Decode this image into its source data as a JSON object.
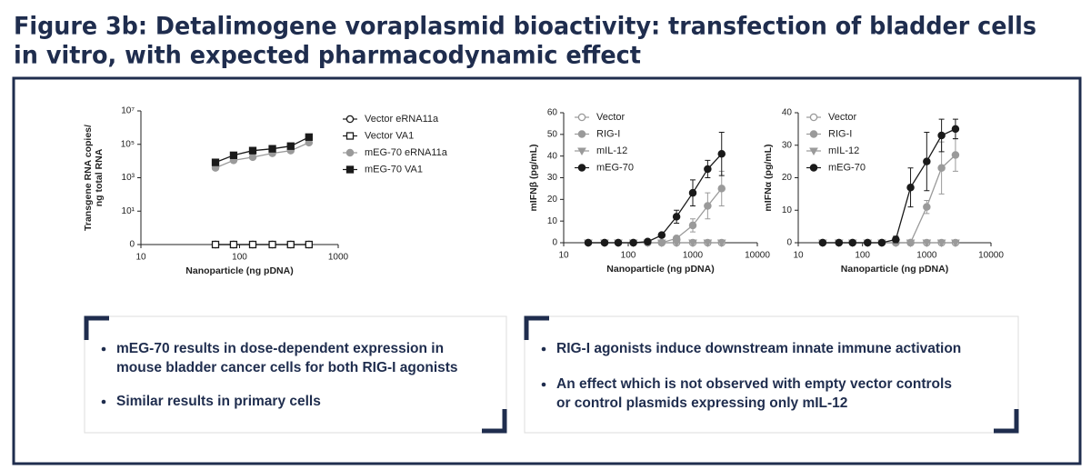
{
  "header": {
    "title_lines": [
      "Figure 3b: Detalimogene voraplasmid bioactivity: transfection of bladder cells",
      "in vitro, with expected pharmacodynamic effect"
    ]
  },
  "chart_data": [
    {
      "type": "line",
      "y_label": [
        "Transgene RNA copies/",
        "ng total RNA"
      ],
      "x_label": "Nanoparticle (ng pDNA)",
      "xlog": true,
      "ylog": true,
      "xlim": [
        10,
        1000
      ],
      "xticks": [
        10,
        100,
        1000
      ],
      "ylim": [
        0,
        10000000
      ],
      "yticks": [
        0,
        {
          "value": 10,
          "label": "10¹"
        },
        {
          "value": 1000,
          "label": "10³"
        },
        {
          "value": 100000,
          "label": "10⁵"
        },
        {
          "value": 10000000,
          "label": "10⁷"
        }
      ],
      "x": [
        57,
        87,
        136,
        215,
        330,
        505
      ],
      "series": [
        {
          "name": "Vector eRNA11a",
          "color": "#1a1a1a",
          "marker": "circle-open",
          "values": [
            0,
            0,
            0,
            0,
            0,
            0
          ]
        },
        {
          "name": "Vector VA1",
          "color": "#1a1a1a",
          "marker": "square-open",
          "values": [
            0,
            0,
            0,
            0,
            0,
            0
          ]
        },
        {
          "name": "mEG-70 eRNA11a",
          "color": "#9a9a9a",
          "marker": "circle",
          "values": [
            3900,
            11000,
            17000,
            29000,
            42000,
            126000
          ]
        },
        {
          "name": "mEG-70 VA1",
          "color": "#1a1a1a",
          "marker": "square",
          "values": [
            8300,
            22000,
            42000,
            54000,
            78000,
            270000
          ]
        }
      ]
    },
    {
      "type": "line",
      "y_label": [
        "mIFNβ (pg/mL)"
      ],
      "x_label": "Nanoparticle (ng pDNA)",
      "xlog": true,
      "ylog": false,
      "xlim": [
        10,
        10000
      ],
      "xticks": [
        10,
        100,
        1000,
        10000
      ],
      "ylim": [
        0,
        60
      ],
      "yticks": [
        0,
        10,
        20,
        30,
        40,
        50,
        60
      ],
      "x": [
        24,
        43,
        70,
        120,
        200,
        330,
        560,
        1000,
        1700,
        2800
      ],
      "series": [
        {
          "name": "Vector",
          "color": "#9a9a9a",
          "marker": "circle-open",
          "values": [
            0,
            0,
            0,
            0,
            0,
            0,
            0,
            0,
            0,
            0
          ]
        },
        {
          "name": "RIG-I",
          "color": "#9a9a9a",
          "marker": "circle",
          "values": [
            0,
            0,
            0,
            0,
            0,
            0,
            2,
            8,
            17,
            25
          ],
          "errors": [
            0,
            0,
            0,
            0,
            0,
            0,
            1,
            3,
            6,
            8
          ]
        },
        {
          "name": "mIL-12",
          "color": "#9a9a9a",
          "marker": "triangle-down",
          "values": [
            0,
            0,
            0,
            0,
            0,
            0,
            0,
            0,
            0,
            0
          ]
        },
        {
          "name": "mEG-70",
          "color": "#1a1a1a",
          "marker": "circle",
          "values": [
            0,
            0,
            0,
            0,
            0.5,
            3.5,
            12,
            23,
            34,
            41
          ],
          "errors": [
            0,
            0,
            0,
            0,
            0,
            1,
            3,
            6,
            4,
            10
          ]
        }
      ]
    },
    {
      "type": "line",
      "y_label": [
        "mIFNα (pg/mL)"
      ],
      "x_label": "Nanoparticle (ng pDNA)",
      "xlog": true,
      "ylog": false,
      "xlim": [
        10,
        10000
      ],
      "xticks": [
        10,
        100,
        1000,
        10000
      ],
      "ylim": [
        0,
        40
      ],
      "yticks": [
        0,
        10,
        20,
        30,
        40
      ],
      "x": [
        24,
        43,
        70,
        120,
        200,
        330,
        560,
        1000,
        1700,
        2800
      ],
      "series": [
        {
          "name": "Vector",
          "color": "#9a9a9a",
          "marker": "circle-open",
          "values": [
            0,
            0,
            0,
            0,
            0,
            0,
            0,
            0,
            0,
            0
          ]
        },
        {
          "name": "RIG-I",
          "color": "#9a9a9a",
          "marker": "circle",
          "values": [
            0,
            0,
            0,
            0,
            0,
            0,
            0,
            11,
            23,
            27
          ],
          "errors": [
            0,
            0,
            0,
            0,
            0,
            0,
            0,
            2,
            8,
            5
          ]
        },
        {
          "name": "mIL-12",
          "color": "#9a9a9a",
          "marker": "triangle-down",
          "values": [
            0,
            0,
            0,
            0,
            0,
            0,
            0,
            0,
            0,
            0
          ]
        },
        {
          "name": "mEG-70",
          "color": "#1a1a1a",
          "marker": "circle",
          "values": [
            0,
            0,
            0,
            0,
            0,
            1,
            17,
            25,
            33,
            35
          ],
          "errors": [
            0,
            0,
            0,
            0,
            0,
            1,
            6,
            9,
            5,
            3
          ]
        }
      ]
    }
  ],
  "notes": [
    {
      "bullets": [
        [
          "mEG-70 results in dose-dependent expression in",
          "mouse bladder cancer cells for both RIG-I agonists"
        ],
        [
          "Similar results in primary cells"
        ]
      ]
    },
    {
      "bullets": [
        [
          "RIG-I agonists induce downstream innate immune activation"
        ],
        [
          "An effect which is not observed with empty vector controls",
          "or control plasmids expressing only mIL-12"
        ]
      ]
    }
  ]
}
